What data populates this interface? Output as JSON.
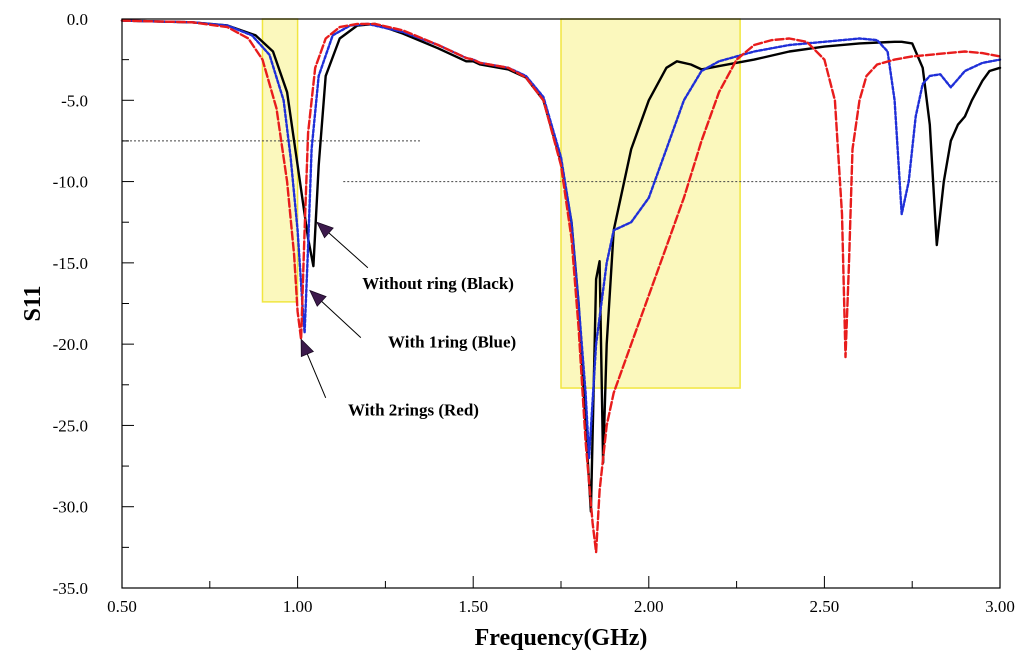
{
  "chart_data": {
    "type": "line",
    "title": "",
    "xlabel": "Frequency(GHz)",
    "ylabel": "S11",
    "xlim": [
      0.5,
      3.0
    ],
    "ylim": [
      -35.0,
      0.0
    ],
    "x_tick_values": [
      0.5,
      1.0,
      1.5,
      2.0,
      2.5,
      3.0
    ],
    "x_tick_labels": [
      "0.50",
      "1.00",
      "1.50",
      "2.00",
      "2.50",
      "3.00"
    ],
    "y_tick_values": [
      0,
      -5,
      -10,
      -15,
      -20,
      -25,
      -30,
      -35
    ],
    "y_tick_labels": [
      "0.0",
      "-5.0",
      "-10.0",
      "-15.0",
      "-20.0",
      "-25.0",
      "-30.0",
      "-35.0"
    ],
    "grid": false,
    "highlight_bands": [
      {
        "x": [
          0.9,
          1.0
        ],
        "y": [
          -17.4,
          0.0
        ],
        "color": "#fbf8bd",
        "stroke": "#f1e640"
      },
      {
        "x": [
          1.75,
          2.26
        ],
        "y": [
          -22.7,
          0.0
        ],
        "color": "#fbf8bd",
        "stroke": "#f1e640"
      }
    ],
    "reference_lines": [
      {
        "y": -7.5,
        "x": [
          0.5,
          1.35
        ]
      },
      {
        "y": -10.0,
        "x": [
          1.13,
          3.0
        ]
      }
    ],
    "annotations": [
      {
        "text": "Without ring (Black)",
        "text_at": [
          1.4,
          -16.6
        ],
        "arrow_from": [
          1.2,
          -15.3
        ],
        "arrow_to": [
          1.055,
          -12.5
        ]
      },
      {
        "text": "With 1ring (Blue)",
        "text_at": [
          1.44,
          -20.2
        ],
        "arrow_from": [
          1.18,
          -19.6
        ],
        "arrow_to": [
          1.035,
          -16.7
        ]
      },
      {
        "text": "With 2rings (Red)",
        "text_at": [
          1.33,
          -24.4
        ],
        "arrow_from": [
          1.08,
          -23.3
        ],
        "arrow_to": [
          1.01,
          -19.7
        ]
      }
    ],
    "series": [
      {
        "color": "#000000",
        "dash": "solid",
        "x": [
          0.5,
          0.7,
          0.8,
          0.88,
          0.93,
          0.97,
          0.99,
          1.01,
          1.03,
          1.045,
          1.06,
          1.08,
          1.12,
          1.17,
          1.22,
          1.3,
          1.4,
          1.48,
          1.5,
          1.52,
          1.6,
          1.65,
          1.7,
          1.75,
          1.78,
          1.8,
          1.82,
          1.835,
          1.85,
          1.86,
          1.87,
          1.88,
          1.9,
          1.95,
          2.0,
          2.05,
          2.08,
          2.12,
          2.15,
          2.2,
          2.3,
          2.4,
          2.5,
          2.6,
          2.7,
          2.72,
          2.75,
          2.78,
          2.8,
          2.82,
          2.84,
          2.86,
          2.88,
          2.9,
          2.92,
          2.95,
          2.97,
          3.0
        ],
        "y": [
          -0.1,
          -0.2,
          -0.4,
          -1.0,
          -2.0,
          -4.5,
          -7.5,
          -10.5,
          -13.5,
          -15.2,
          -9.0,
          -3.5,
          -1.2,
          -0.4,
          -0.3,
          -0.9,
          -1.8,
          -2.6,
          -2.6,
          -2.8,
          -3.1,
          -3.6,
          -5.0,
          -8.8,
          -12.5,
          -17.5,
          -25.0,
          -30.3,
          -16.0,
          -14.9,
          -27.3,
          -20.0,
          -13.0,
          -8.0,
          -5.0,
          -3.0,
          -2.6,
          -2.8,
          -3.1,
          -2.9,
          -2.5,
          -2.0,
          -1.7,
          -1.5,
          -1.4,
          -1.4,
          -1.5,
          -3.0,
          -6.5,
          -13.9,
          -10.0,
          -7.5,
          -6.5,
          -6.0,
          -5.0,
          -3.8,
          -3.2,
          -3.0
        ]
      },
      {
        "color": "#1f2fd8",
        "dash": "short-dash",
        "x": [
          0.5,
          0.7,
          0.8,
          0.87,
          0.92,
          0.96,
          0.98,
          1.0,
          1.015,
          1.02,
          1.03,
          1.04,
          1.06,
          1.1,
          1.15,
          1.2,
          1.3,
          1.4,
          1.48,
          1.5,
          1.52,
          1.6,
          1.65,
          1.7,
          1.75,
          1.78,
          1.8,
          1.82,
          1.83,
          1.85,
          1.88,
          1.9,
          1.95,
          2.0,
          2.05,
          2.1,
          2.15,
          2.2,
          2.3,
          2.4,
          2.5,
          2.6,
          2.65,
          2.68,
          2.7,
          2.72,
          2.74,
          2.76,
          2.78,
          2.8,
          2.83,
          2.86,
          2.88,
          2.9,
          2.95,
          3.0
        ],
        "y": [
          -0.1,
          -0.2,
          -0.4,
          -1.0,
          -2.2,
          -5.0,
          -8.5,
          -13.0,
          -18.0,
          -19.3,
          -14.0,
          -8.0,
          -3.5,
          -1.0,
          -0.4,
          -0.3,
          -0.8,
          -1.6,
          -2.4,
          -2.5,
          -2.7,
          -3.0,
          -3.5,
          -4.8,
          -8.5,
          -12.5,
          -17.5,
          -23.0,
          -27.0,
          -20.0,
          -15.0,
          -13.0,
          -12.5,
          -11.0,
          -8.0,
          -5.0,
          -3.2,
          -2.6,
          -2.0,
          -1.6,
          -1.4,
          -1.2,
          -1.3,
          -2.0,
          -5.0,
          -12.0,
          -10.0,
          -6.0,
          -4.0,
          -3.5,
          -3.4,
          -4.2,
          -3.7,
          -3.2,
          -2.7,
          -2.5
        ]
      },
      {
        "color": "#e81c1c",
        "dash": "long-dash",
        "x": [
          0.5,
          0.7,
          0.8,
          0.86,
          0.9,
          0.94,
          0.97,
          0.99,
          1.0,
          1.01,
          1.02,
          1.03,
          1.05,
          1.08,
          1.12,
          1.17,
          1.22,
          1.3,
          1.4,
          1.48,
          1.5,
          1.52,
          1.6,
          1.65,
          1.7,
          1.75,
          1.78,
          1.8,
          1.82,
          1.84,
          1.85,
          1.86,
          1.88,
          1.9,
          1.95,
          2.0,
          2.05,
          2.1,
          2.15,
          2.2,
          2.25,
          2.3,
          2.35,
          2.4,
          2.45,
          2.5,
          2.53,
          2.55,
          2.56,
          2.57,
          2.58,
          2.6,
          2.62,
          2.65,
          2.7,
          2.75,
          2.8,
          2.85,
          2.9,
          2.95,
          3.0
        ],
        "y": [
          -0.1,
          -0.2,
          -0.5,
          -1.2,
          -2.5,
          -5.5,
          -10.0,
          -14.5,
          -18.0,
          -19.7,
          -13.0,
          -7.0,
          -3.0,
          -1.2,
          -0.5,
          -0.3,
          -0.3,
          -0.7,
          -1.6,
          -2.4,
          -2.5,
          -2.7,
          -3.0,
          -3.6,
          -5.0,
          -9.0,
          -13.5,
          -19.0,
          -26.0,
          -31.0,
          -32.8,
          -29.0,
          -25.0,
          -23.0,
          -20.0,
          -17.0,
          -14.0,
          -11.0,
          -7.5,
          -4.5,
          -2.5,
          -1.6,
          -1.3,
          -1.2,
          -1.4,
          -2.5,
          -5.0,
          -12.0,
          -20.8,
          -15.0,
          -8.0,
          -5.0,
          -3.5,
          -2.8,
          -2.5,
          -2.3,
          -2.2,
          -2.1,
          -2.0,
          -2.1,
          -2.3
        ]
      }
    ]
  }
}
